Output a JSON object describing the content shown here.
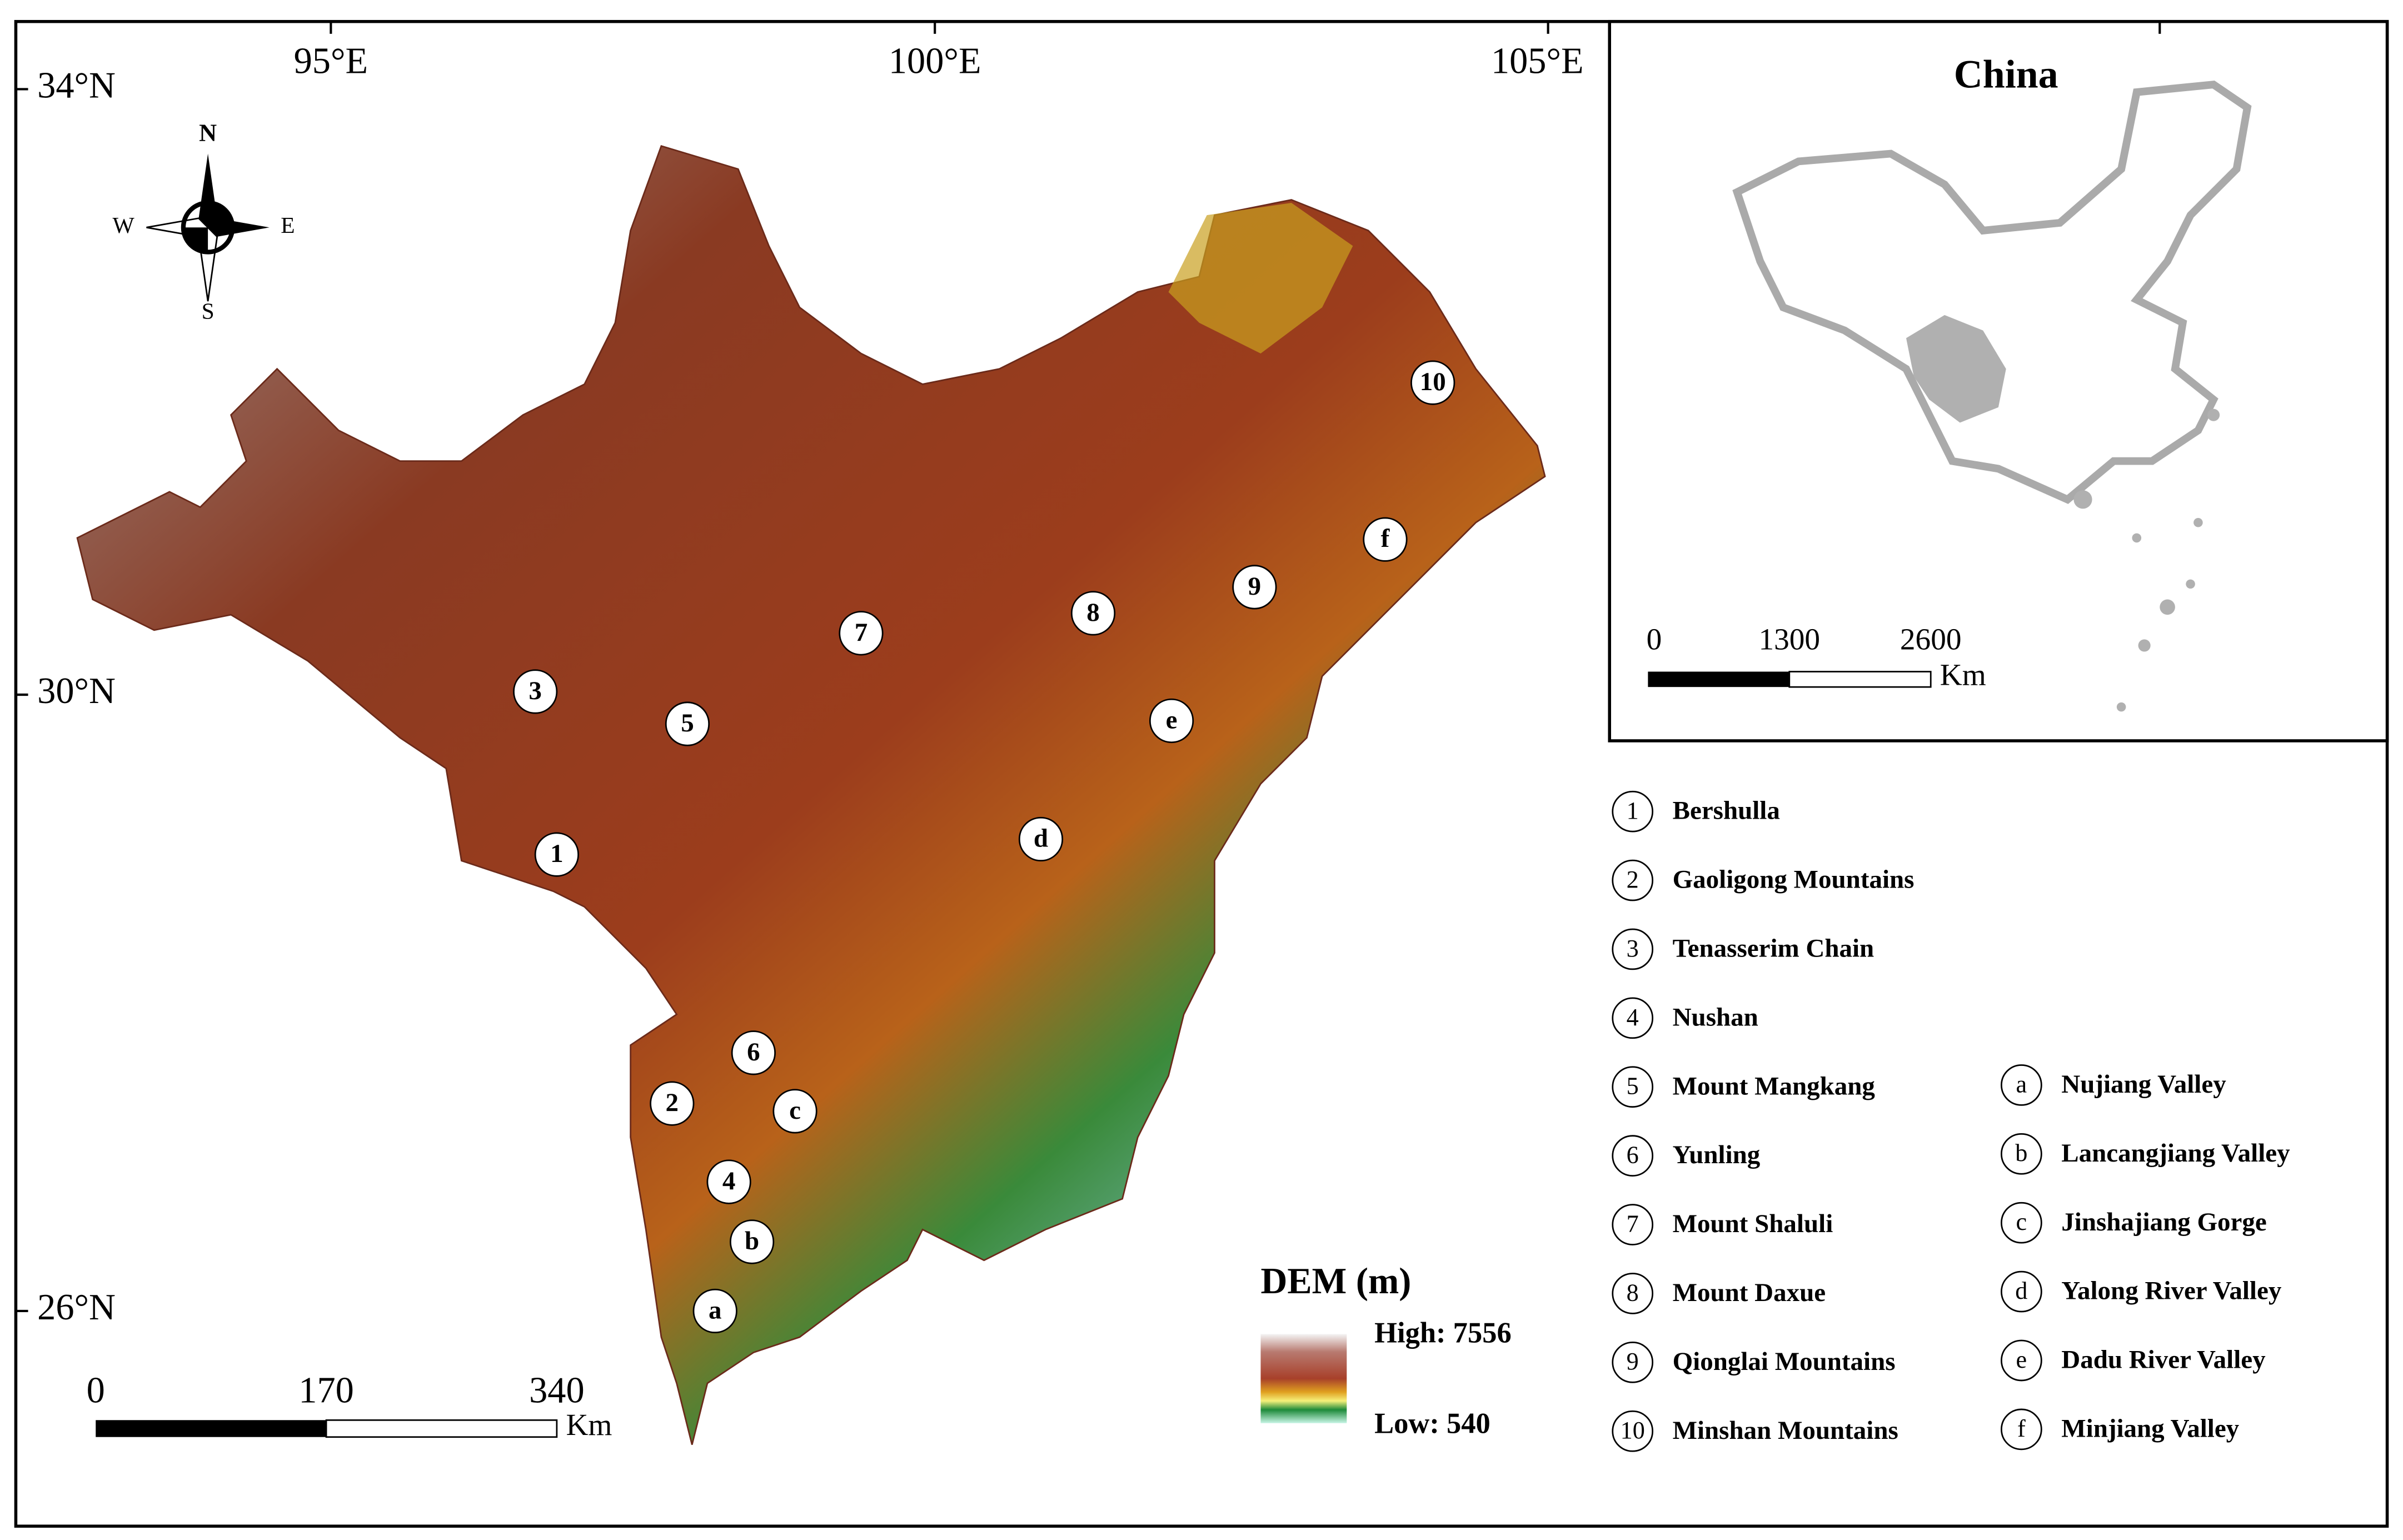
{
  "map": {
    "lon_labels": [
      "95°E",
      "100°E",
      "105°E"
    ],
    "lat_labels": [
      "34°N",
      "30°N",
      "26°N"
    ],
    "compass": {
      "n": "N",
      "s": "S",
      "e": "E",
      "w": "W"
    },
    "scale_bar": {
      "labels": [
        "0",
        "170",
        "340"
      ],
      "unit": "Km"
    },
    "dem_legend": {
      "title": "DEM (m)",
      "high": "High: 7556",
      "low": "Low: 540"
    }
  },
  "inset": {
    "title": "China",
    "scale_bar": {
      "labels": [
        "0",
        "1300",
        "2600"
      ],
      "unit": "Km"
    }
  },
  "legend": {
    "numbered": [
      {
        "symbol": "1",
        "name": "Bershulla"
      },
      {
        "symbol": "2",
        "name": "Gaoligong Mountains"
      },
      {
        "symbol": "3",
        "name": "Tenasserim Chain"
      },
      {
        "symbol": "4",
        "name": "Nushan"
      },
      {
        "symbol": "5",
        "name": "Mount Mangkang"
      },
      {
        "symbol": "6",
        "name": "Yunling"
      },
      {
        "symbol": "7",
        "name": "Mount Shaluli"
      },
      {
        "symbol": "8",
        "name": "Mount Daxue"
      },
      {
        "symbol": "9",
        "name": "Qionglai Mountains"
      },
      {
        "symbol": "10",
        "name": "Minshan Mountains"
      }
    ],
    "lettered": [
      {
        "symbol": "a",
        "name": "Nujiang Valley"
      },
      {
        "symbol": "b",
        "name": "Lancangjiang Valley"
      },
      {
        "symbol": "c",
        "name": "Jinshajiang Gorge"
      },
      {
        "symbol": "d",
        "name": "Yalong River Valley"
      },
      {
        "symbol": "e",
        "name": "Dadu River Valley"
      },
      {
        "symbol": "f",
        "name": "Minjiang Valley"
      }
    ]
  }
}
